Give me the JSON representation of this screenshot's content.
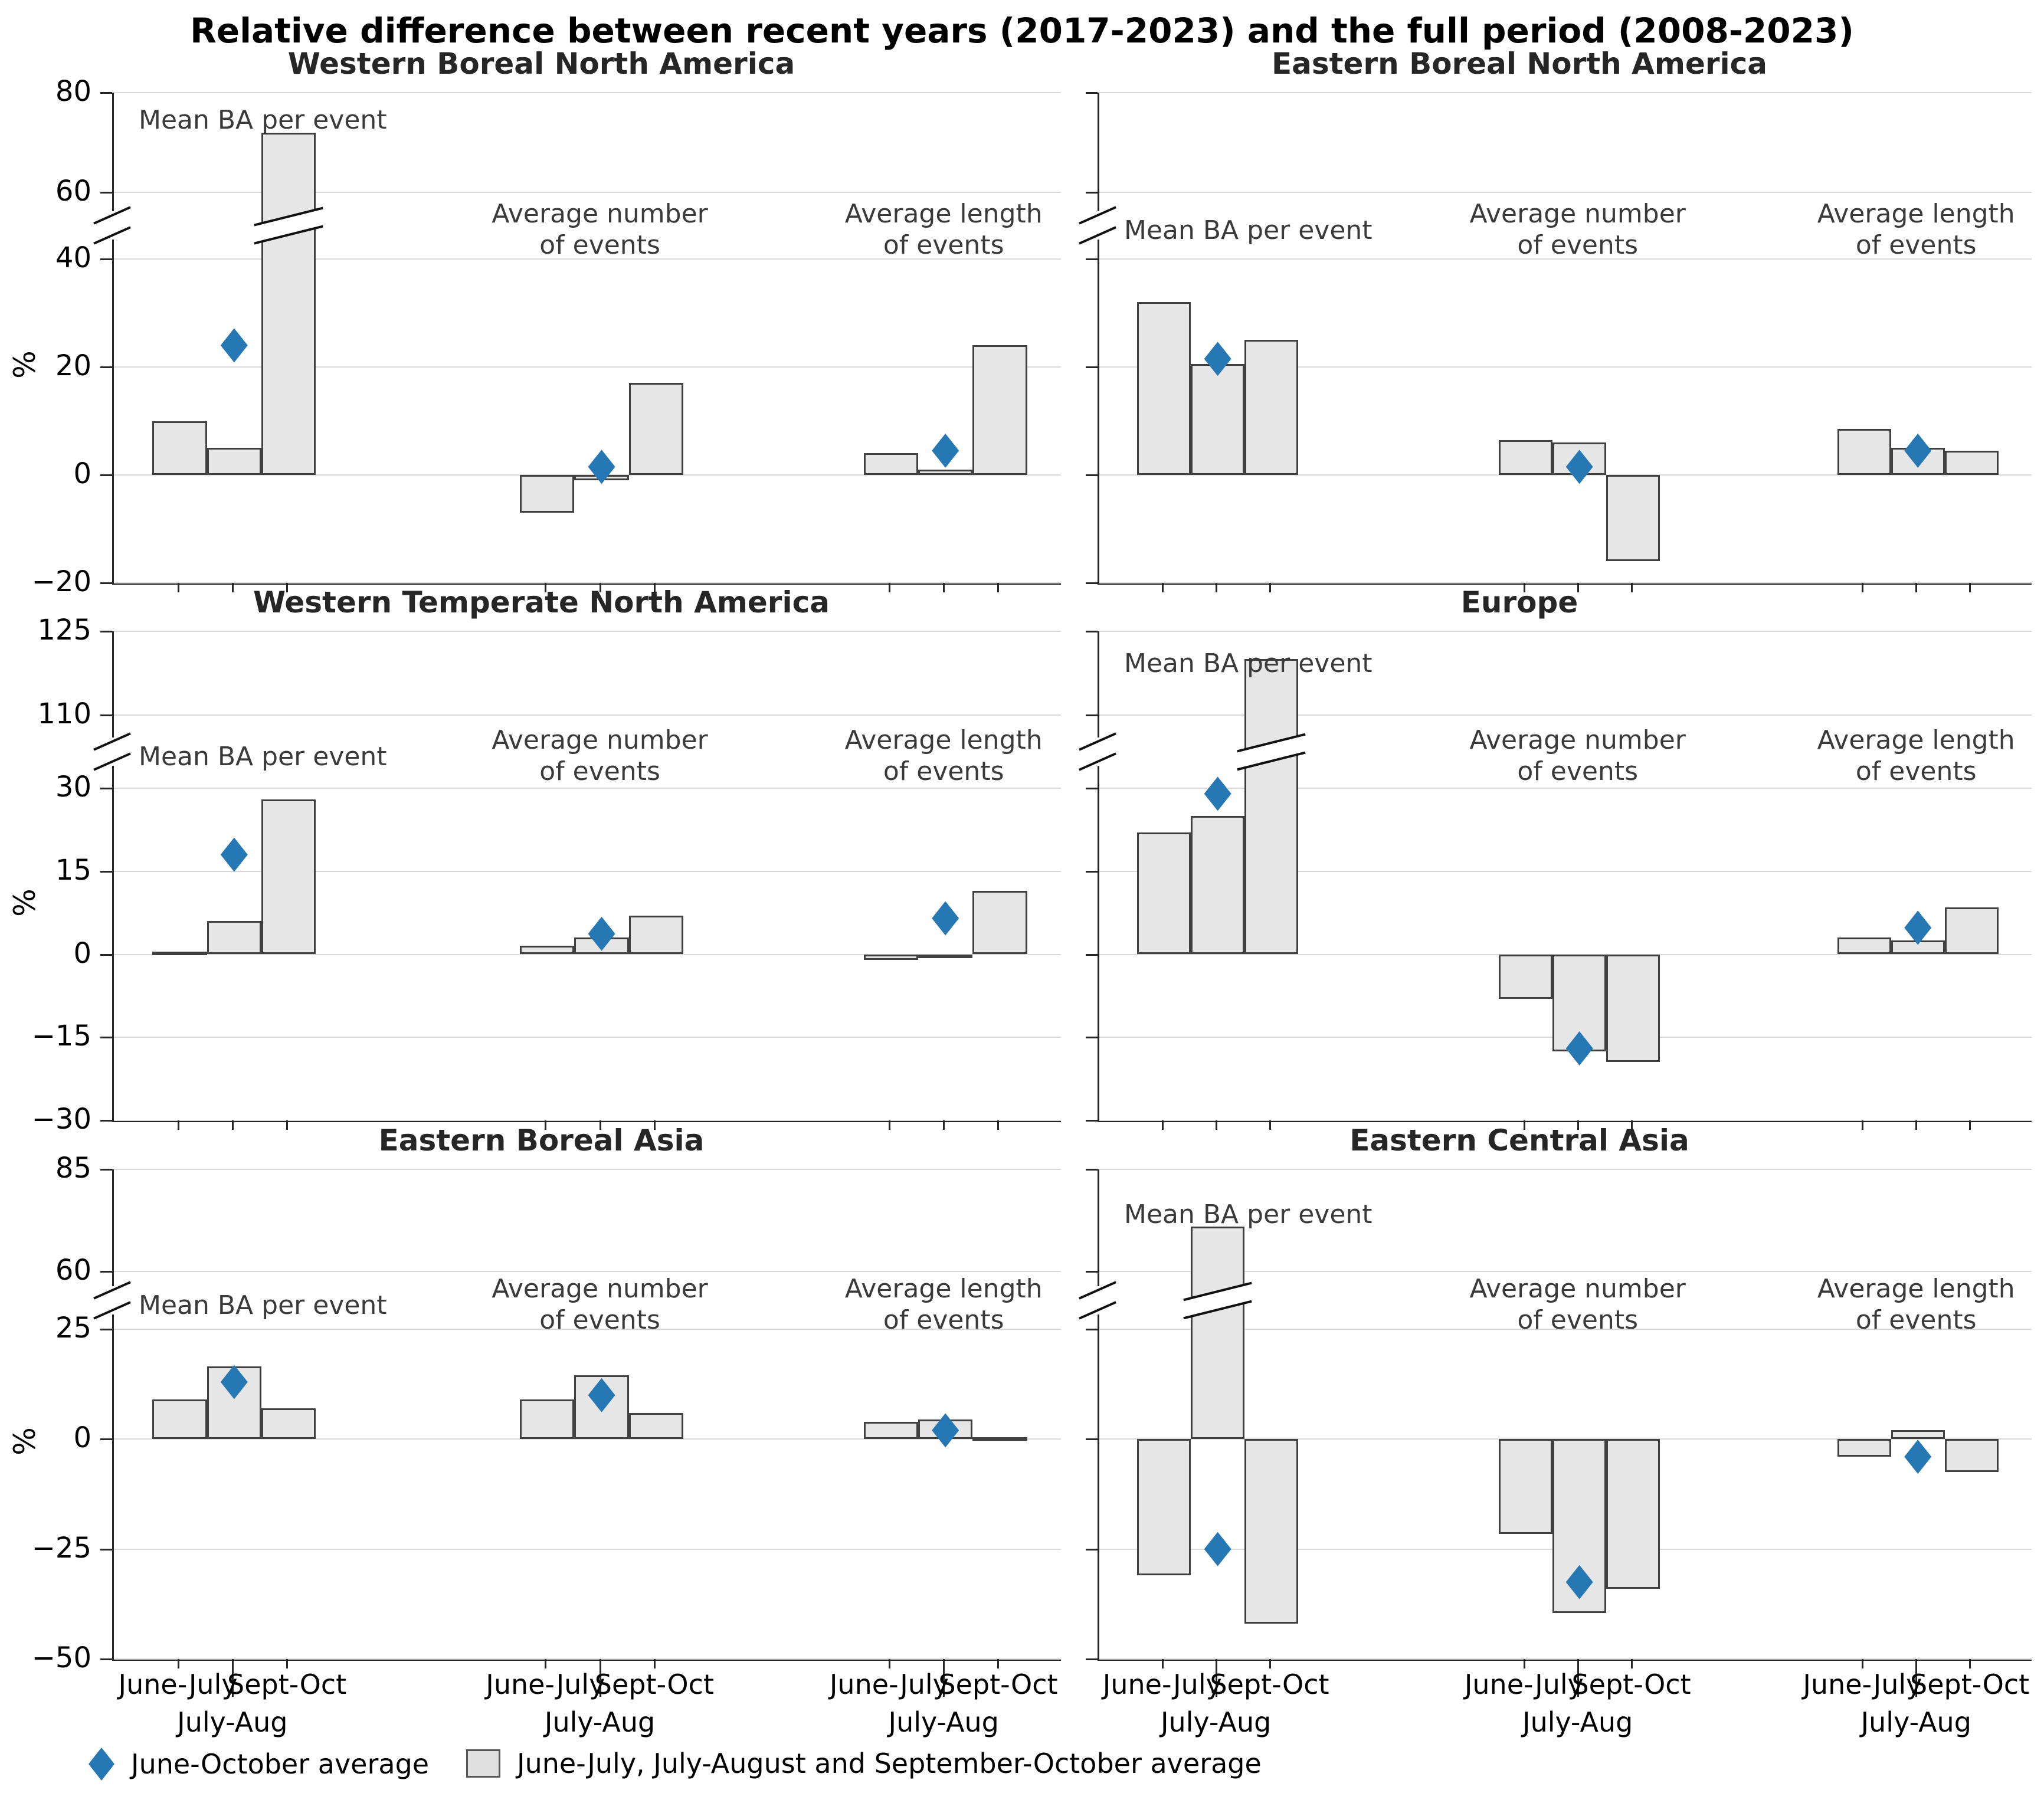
{
  "figure": {
    "title": "Relative difference between recent years (2017-2023) and the full period (2008-2023)",
    "ylabel": "%",
    "legend": {
      "diamond_label": "June-October average",
      "bar_label": "June-July, July-August and September-October average"
    },
    "colors": {
      "diamond": "#2578b4",
      "bar_fill": "#e6e6e6",
      "bar_edge": "#404040",
      "gridline": "#d9d9d9",
      "axis": "#262626"
    }
  },
  "chart_data": {
    "type": "bar",
    "title": "Relative difference between recent years (2017-2023) and the full period (2008-2023)",
    "ylabel": "%",
    "categories": [
      "June-July",
      "July-Aug",
      "Sept-Oct"
    ],
    "marker_series_label": "June-October average",
    "bar_series_label": "June-July, July-August and September-October average",
    "rows": [
      {
        "yticks": [
          80,
          60,
          40,
          20,
          0,
          -20
        ],
        "break_between": [
          60,
          40
        ]
      },
      {
        "yticks": [
          125,
          110,
          30,
          15,
          0,
          -15,
          -30
        ],
        "break_between": [
          110,
          30
        ]
      },
      {
        "yticks": [
          85,
          60,
          25,
          0,
          -25,
          -50
        ],
        "break_between": [
          60,
          25
        ]
      }
    ],
    "panels": [
      {
        "title": "Western Boreal North America",
        "row": 0,
        "groups": [
          {
            "label_lines": [
              "Mean BA per event"
            ],
            "bars": [
              10,
              5,
              72
            ],
            "diamond": 24
          },
          {
            "label_lines": [
              "Average number",
              "of events"
            ],
            "bars": [
              -7,
              -1,
              17
            ],
            "diamond": 1.5
          },
          {
            "label_lines": [
              "Average length",
              "of events"
            ],
            "bars": [
              4,
              1,
              24
            ],
            "diamond": 4.5
          }
        ]
      },
      {
        "title": "Eastern Boreal North America",
        "row": 0,
        "groups": [
          {
            "label_lines": [
              "Mean BA per event"
            ],
            "bars": [
              32,
              20.5,
              25
            ],
            "diamond": 21.5
          },
          {
            "label_lines": [
              "Average number",
              "of events"
            ],
            "bars": [
              6.5,
              6,
              -16
            ],
            "diamond": 1.5
          },
          {
            "label_lines": [
              "Average length",
              "of events"
            ],
            "bars": [
              8.5,
              5,
              4.5
            ],
            "diamond": 4.5
          }
        ]
      },
      {
        "title": "Western Temperate North America",
        "row": 1,
        "groups": [
          {
            "label_lines": [
              "Mean BA per event"
            ],
            "bars": [
              0.5,
              6,
              28
            ],
            "diamond": 18
          },
          {
            "label_lines": [
              "Average number",
              "of events"
            ],
            "bars": [
              1.5,
              3,
              7
            ],
            "diamond": 3.7
          },
          {
            "label_lines": [
              "Average length",
              "of events"
            ],
            "bars": [
              -1,
              -0.5,
              11.5
            ],
            "diamond": 6.5
          }
        ]
      },
      {
        "title": "Europe",
        "row": 1,
        "groups": [
          {
            "label_lines": [
              "Mean BA per event"
            ],
            "bars": [
              22,
              25,
              120
            ],
            "diamond": 29
          },
          {
            "label_lines": [
              "Average number",
              "of events"
            ],
            "bars": [
              -8,
              -17.5,
              -19.5
            ],
            "diamond": -17
          },
          {
            "label_lines": [
              "Average length",
              "of events"
            ],
            "bars": [
              3,
              2.5,
              8.5
            ],
            "diamond": 4.8
          }
        ]
      },
      {
        "title": "Eastern Boreal Asia",
        "row": 2,
        "groups": [
          {
            "label_lines": [
              "Mean BA per event"
            ],
            "bars": [
              9,
              16.5,
              7
            ],
            "diamond": 13
          },
          {
            "label_lines": [
              "Average number",
              "of events"
            ],
            "bars": [
              9,
              14.5,
              6
            ],
            "diamond": 10
          },
          {
            "label_lines": [
              "Average length",
              "of events"
            ],
            "bars": [
              4,
              4.5,
              0.5
            ],
            "diamond": 2
          }
        ]
      },
      {
        "title": "Eastern Central Asia",
        "row": 2,
        "groups": [
          {
            "label_lines": [
              "Mean BA per event"
            ],
            "bars": [
              -31,
              71,
              -42
            ],
            "diamond": -25
          },
          {
            "label_lines": [
              "Average number",
              "of events"
            ],
            "bars": [
              -21.5,
              -39.5,
              -34
            ],
            "diamond": -32.5
          },
          {
            "label_lines": [
              "Average length",
              "of events"
            ],
            "bars": [
              -4,
              2,
              -7.5
            ],
            "diamond": -4
          }
        ]
      }
    ]
  }
}
